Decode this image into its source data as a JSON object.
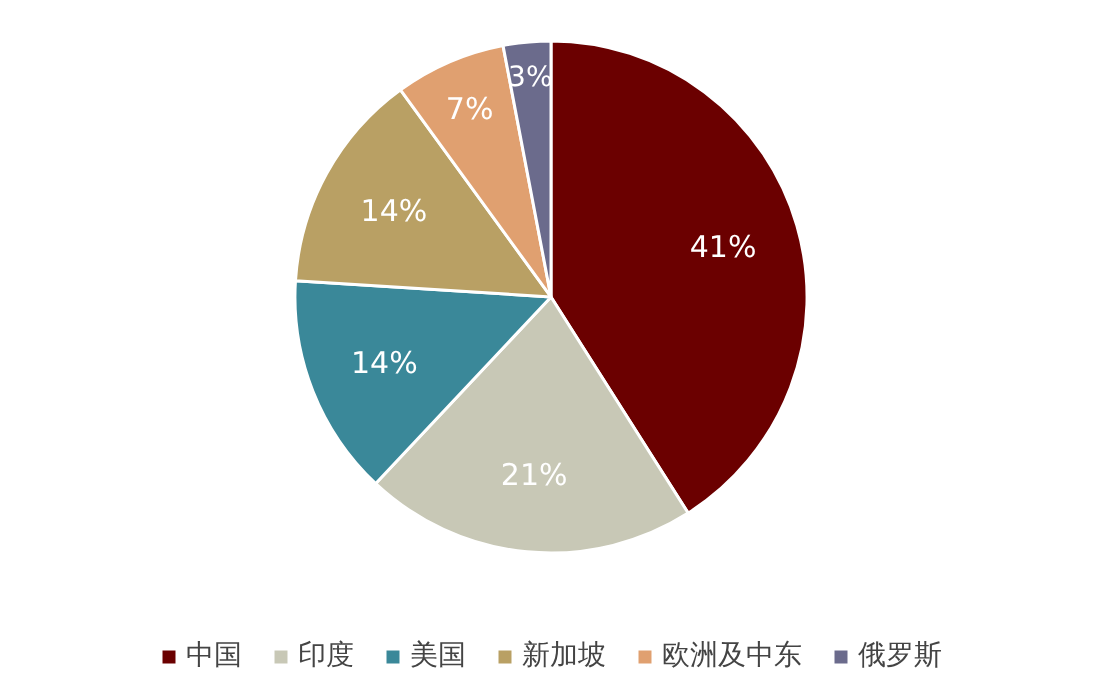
{
  "chart_data": {
    "type": "pie",
    "categories": [
      "中国",
      "印度",
      "美国",
      "新加坡",
      "欧洲及中东",
      "俄罗斯"
    ],
    "values": [
      41,
      21,
      14,
      14,
      7,
      3
    ],
    "value_labels": [
      "41%",
      "21%",
      "14%",
      "14%",
      "7%",
      "3%"
    ],
    "colors": [
      "#6b0000",
      "#c8c8b6",
      "#3a8899",
      "#b9a064",
      "#e0a070",
      "#6b6b8c"
    ],
    "legend": "bottom"
  }
}
